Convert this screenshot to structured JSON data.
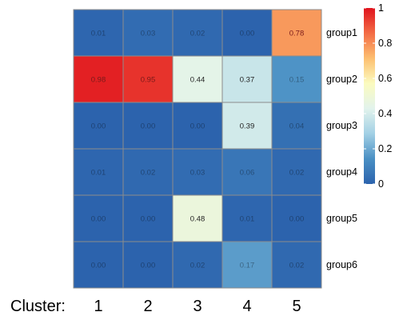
{
  "chart_data": {
    "type": "heatmap",
    "rows": [
      "group1",
      "group2",
      "group3",
      "group4",
      "group5",
      "group6"
    ],
    "columns": [
      "1",
      "2",
      "3",
      "4",
      "5"
    ],
    "values": [
      [
        "0.01",
        "0.03",
        "0.02",
        "0.00",
        "0.78"
      ],
      [
        "0.98",
        "0.95",
        "0.44",
        "0.37",
        "0.15"
      ],
      [
        "0.00",
        "0.00",
        "0.00",
        "0.39",
        "0.04"
      ],
      [
        "0.01",
        "0.02",
        "0.03",
        "0.06",
        "0.02"
      ],
      [
        "0.00",
        "0.00",
        "0.48",
        "0.01",
        "0.00"
      ],
      [
        "0.00",
        "0.00",
        "0.02",
        "0.17",
        "0.02"
      ]
    ],
    "column_axis_label": "Cluster:",
    "color_scale": {
      "range": [
        0,
        1
      ],
      "ticks": [
        "1",
        "0.8",
        "0.6",
        "0.4",
        "0.2",
        "0"
      ],
      "colors": [
        "#2c63ad",
        "#4a90c4",
        "#a2d0e5",
        "#e2f3ec",
        "#fbfbbf",
        "#fdbf70",
        "#f36c45",
        "#e0141e"
      ]
    },
    "grid_color": "#8c8c8c"
  }
}
